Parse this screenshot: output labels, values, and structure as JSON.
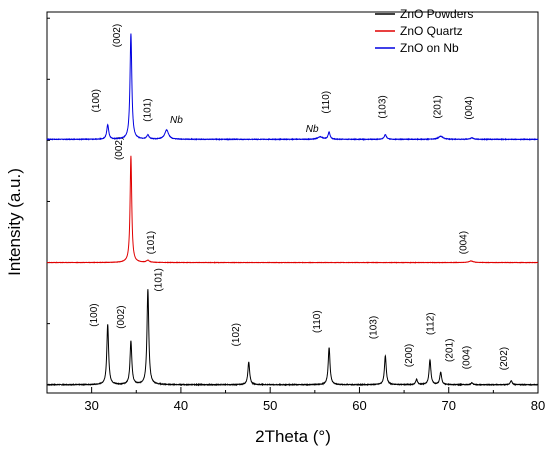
{
  "chart_data": {
    "type": "line",
    "xlabel": "2Theta (°)",
    "ylabel": "Intensity (a.u.)",
    "xlim": [
      25,
      80
    ],
    "xticks": [
      30,
      40,
      50,
      60,
      70,
      80
    ],
    "grid": false,
    "legend_position": "top-right",
    "series": [
      {
        "name": "ZnO Powders",
        "color": "#000000",
        "baseline": 0,
        "noise": 0.6,
        "peaks": [
          {
            "x": 31.8,
            "height": 58,
            "width": 0.12
          },
          {
            "x": 34.4,
            "height": 42,
            "width": 0.12
          },
          {
            "x": 36.3,
            "height": 92,
            "width": 0.12
          },
          {
            "x": 47.6,
            "height": 22,
            "width": 0.12
          },
          {
            "x": 56.6,
            "height": 36,
            "width": 0.12
          },
          {
            "x": 62.9,
            "height": 28,
            "width": 0.12
          },
          {
            "x": 66.4,
            "height": 5,
            "width": 0.12
          },
          {
            "x": 67.9,
            "height": 24,
            "width": 0.12
          },
          {
            "x": 69.1,
            "height": 12,
            "width": 0.12
          },
          {
            "x": 72.6,
            "height": 2,
            "width": 0.12
          },
          {
            "x": 77.0,
            "height": 4,
            "width": 0.12
          }
        ],
        "labels": [
          {
            "text": "(100)",
            "x": 30.6,
            "y": 56
          },
          {
            "text": "(002)",
            "x": 33.6,
            "y": 54
          },
          {
            "text": "(101)",
            "x": 37.8,
            "y": 90
          },
          {
            "text": "(102)",
            "x": 46.5,
            "y": 37
          },
          {
            "text": "(110)",
            "x": 55.6,
            "y": 50
          },
          {
            "text": "(103)",
            "x": 61.9,
            "y": 44
          },
          {
            "text": "(200)",
            "x": 65.9,
            "y": 17
          },
          {
            "text": "(112)",
            "x": 68.3,
            "y": 48
          },
          {
            "text": "(201)",
            "x": 70.4,
            "y": 22
          },
          {
            "text": "(004)",
            "x": 72.3,
            "y": 15
          },
          {
            "text": "(202)",
            "x": 76.5,
            "y": 14
          }
        ]
      },
      {
        "name": "ZnO Quartz",
        "color": "#e00000",
        "baseline": 118,
        "noise": 0.3,
        "peaks": [
          {
            "x": 34.4,
            "height": 103,
            "width": 0.11
          },
          {
            "x": 36.3,
            "height": 2,
            "width": 0.2
          },
          {
            "x": 72.5,
            "height": 1.5,
            "width": 0.3
          }
        ],
        "labels": [
          {
            "text": "(002)",
            "x": 33.4,
            "y": 217
          },
          {
            "text": "(101)",
            "x": 37.0,
            "y": 126
          },
          {
            "text": "(004)",
            "x": 72.0,
            "y": 126
          }
        ]
      },
      {
        "name": "ZnO on Nb",
        "color": "#0000e0",
        "baseline": 237,
        "noise": 0.5,
        "peaks": [
          {
            "x": 31.8,
            "height": 14,
            "width": 0.13
          },
          {
            "x": 34.4,
            "height": 102,
            "width": 0.12
          },
          {
            "x": 36.3,
            "height": 4,
            "width": 0.15
          },
          {
            "x": 38.4,
            "height": 9,
            "width": 0.25
          },
          {
            "x": 55.6,
            "height": 2.5,
            "width": 0.3
          },
          {
            "x": 56.6,
            "height": 7,
            "width": 0.13
          },
          {
            "x": 62.9,
            "height": 4.5,
            "width": 0.15
          },
          {
            "x": 69.1,
            "height": 3,
            "width": 0.3
          },
          {
            "x": 72.6,
            "height": 1.5,
            "width": 0.2
          }
        ],
        "labels": [
          {
            "text": "(100)",
            "x": 30.8,
            "y": 263
          },
          {
            "text": "(002)",
            "x": 33.2,
            "y": 326
          },
          {
            "text": "(101)",
            "x": 36.6,
            "y": 254
          },
          {
            "text": "(110)",
            "x": 56.6,
            "y": 262
          },
          {
            "text": "(103)",
            "x": 62.9,
            "y": 257
          },
          {
            "text": "(201)",
            "x": 69.1,
            "y": 257
          },
          {
            "text": "(004)",
            "x": 72.6,
            "y": 256
          }
        ],
        "italic_labels": [
          {
            "text": "Nb",
            "x": 39.5,
            "y": 253
          },
          {
            "text": "Nb",
            "x": 54.7,
            "y": 244
          }
        ]
      }
    ],
    "ylim": [
      -8,
      360
    ]
  }
}
